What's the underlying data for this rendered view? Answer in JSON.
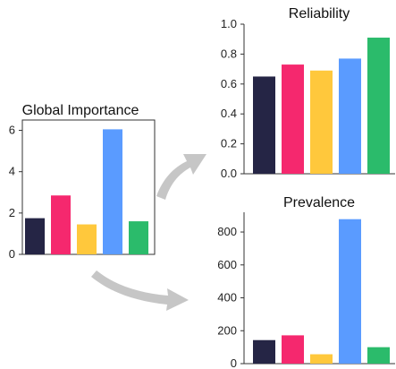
{
  "colors": [
    "#252545",
    "#f5286e",
    "#ffc83c",
    "#5a9bff",
    "#2bbb6b"
  ],
  "arrow_color": "#c6c6c6",
  "chart_data": [
    {
      "type": "bar",
      "title": "Global Importance",
      "categories": [
        "",
        "",
        "",
        "",
        ""
      ],
      "values": [
        1.75,
        2.85,
        1.45,
        6.05,
        1.6
      ],
      "ylim": [
        0,
        6.5
      ],
      "yticks": [
        0,
        2,
        4,
        6
      ],
      "grid": false
    },
    {
      "type": "bar",
      "title": "Reliability",
      "categories": [
        "",
        "",
        "",
        "",
        ""
      ],
      "values": [
        0.65,
        0.73,
        0.69,
        0.77,
        0.91
      ],
      "ylim": [
        0,
        1.0
      ],
      "yticks": [
        "0.0",
        "0.2",
        "0.4",
        "0.6",
        "0.8",
        "1.0"
      ],
      "grid": false
    },
    {
      "type": "bar",
      "title": "Prevalence",
      "categories": [
        "",
        "",
        "",
        "",
        ""
      ],
      "values": [
        143,
        172,
        57,
        878,
        100
      ],
      "ylim": [
        0,
        920
      ],
      "yticks": [
        0,
        200,
        400,
        600,
        800
      ],
      "grid": false
    }
  ]
}
